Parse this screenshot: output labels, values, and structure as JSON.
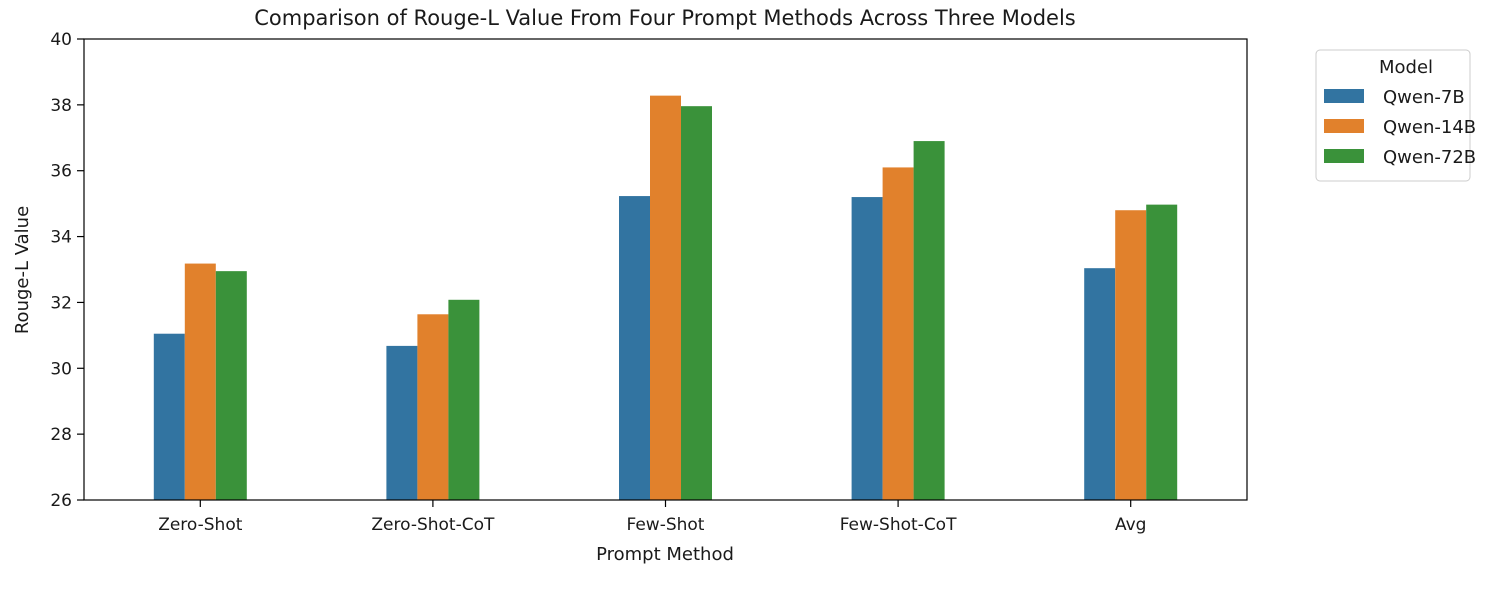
{
  "chart_data": {
    "type": "bar",
    "title": "Comparison of Rouge-L Value From Four Prompt Methods Across Three Models",
    "xlabel": "Prompt Method",
    "ylabel": "Rouge-L Value",
    "ylim": [
      26,
      40
    ],
    "yticks": [
      26,
      28,
      30,
      32,
      34,
      36,
      38,
      40
    ],
    "categories": [
      "Zero-Shot",
      "Zero-Shot-CoT",
      "Few-Shot",
      "Few-Shot-CoT",
      "Avg"
    ],
    "series": [
      {
        "name": "Qwen-7B",
        "color": "#3274a1",
        "values": [
          31.05,
          30.68,
          35.23,
          35.2,
          33.04
        ]
      },
      {
        "name": "Qwen-14B",
        "color": "#e1812c",
        "values": [
          33.18,
          31.64,
          38.28,
          36.1,
          34.8
        ]
      },
      {
        "name": "Qwen-72B",
        "color": "#3a923a",
        "values": [
          32.95,
          32.08,
          37.96,
          36.9,
          34.97
        ]
      }
    ],
    "legend": {
      "title": "Model",
      "placement": "outside-top-right"
    },
    "grid": false
  }
}
